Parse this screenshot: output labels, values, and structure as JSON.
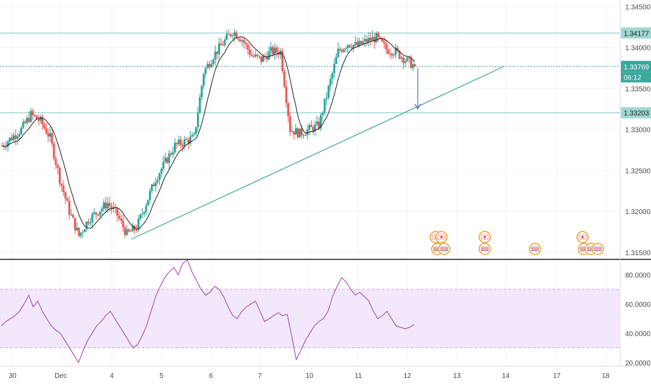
{
  "chart_data": [
    {
      "type": "candlestick",
      "title": "",
      "ylim": [
        1.3143,
        1.3458
      ],
      "price_ticks": [
        "1.34500",
        "1.34000",
        "1.33500",
        "1.33000",
        "1.32500",
        "1.32000",
        "1.31500"
      ],
      "date_labels": [
        "30",
        "Dec",
        "4",
        "5",
        "6",
        "7",
        "10",
        "11",
        "12",
        "13",
        "14",
        "17",
        "18"
      ],
      "levels": [
        {
          "label": "1.34177",
          "value": 1.34177,
          "kind": "horizontal"
        },
        {
          "label": "1.33769",
          "value": 1.33769,
          "kind": "last-price"
        },
        {
          "label": "1.33203",
          "value": 1.33203,
          "kind": "horizontal"
        }
      ],
      "countdown": "06:12",
      "trendline": {
        "start": {
          "date": "4",
          "price": 1.3166
        },
        "end": {
          "date": "14",
          "price": 1.3377
        }
      },
      "arrow": {
        "from": 1.3375,
        "to": 1.3325,
        "direction": "down"
      },
      "ohlc_path": [
        [
          1.328,
          1.3275,
          1.3295
        ],
        [
          1.329,
          1.3285,
          1.3305
        ],
        [
          1.33,
          1.3298,
          1.3318
        ],
        [
          1.3318,
          1.3315,
          1.333
        ],
        [
          1.331,
          1.33,
          1.332
        ],
        [
          1.329,
          1.3278,
          1.33
        ],
        [
          1.324,
          1.3235,
          1.326
        ],
        [
          1.32,
          1.3182,
          1.3205
        ],
        [
          1.317,
          1.316,
          1.3185
        ],
        [
          1.319,
          1.318,
          1.321
        ],
        [
          1.32,
          1.319,
          1.3222
        ],
        [
          1.321,
          1.3195,
          1.322
        ],
        [
          1.3195,
          1.3185,
          1.3205
        ],
        [
          1.3172,
          1.3164,
          1.3185
        ],
        [
          1.318,
          1.317,
          1.3195
        ],
        [
          1.321,
          1.32,
          1.3225
        ],
        [
          1.324,
          1.323,
          1.3255
        ],
        [
          1.326,
          1.3255,
          1.328
        ],
        [
          1.328,
          1.327,
          1.3292
        ],
        [
          1.3285,
          1.3275,
          1.3295
        ],
        [
          1.329,
          1.3275,
          1.3298
        ],
        [
          1.337,
          1.328,
          1.3385
        ],
        [
          1.339,
          1.337,
          1.3405
        ],
        [
          1.3405,
          1.3395,
          1.342
        ],
        [
          1.342,
          1.341,
          1.344
        ],
        [
          1.341,
          1.3395,
          1.3425
        ],
        [
          1.339,
          1.338,
          1.3405
        ],
        [
          1.3385,
          1.338,
          1.3402
        ],
        [
          1.3395,
          1.3388,
          1.3405
        ],
        [
          1.3395,
          1.339,
          1.3402
        ],
        [
          1.33,
          1.326,
          1.3395
        ],
        [
          1.3295,
          1.3278,
          1.331
        ],
        [
          1.33,
          1.3292,
          1.332
        ],
        [
          1.3305,
          1.3298,
          1.3312
        ],
        [
          1.335,
          1.3305,
          1.3368
        ],
        [
          1.3395,
          1.338,
          1.3405
        ],
        [
          1.3405,
          1.3395,
          1.3418
        ],
        [
          1.3402,
          1.3395,
          1.3412
        ],
        [
          1.3408,
          1.34,
          1.3418
        ],
        [
          1.3412,
          1.3402,
          1.342
        ],
        [
          1.3398,
          1.3385,
          1.341
        ],
        [
          1.3395,
          1.3385,
          1.341
        ],
        [
          1.3385,
          1.338,
          1.3395
        ],
        [
          1.3377,
          1.3374,
          1.3385
        ]
      ]
    },
    {
      "type": "line",
      "name": "RSI",
      "ylim": [
        17.5,
        90
      ],
      "ticks": [
        "80.0000",
        "60.0000",
        "40.0000",
        "20.0000"
      ],
      "band": [
        30,
        70
      ],
      "values": [
        45,
        48,
        50,
        52,
        55,
        60,
        66,
        58,
        62,
        55,
        50,
        45,
        42,
        40,
        35,
        30,
        25,
        20,
        28,
        35,
        40,
        45,
        48,
        52,
        55,
        50,
        45,
        40,
        35,
        30,
        32,
        38,
        45,
        55,
        65,
        72,
        78,
        82,
        85,
        80,
        88,
        90,
        82,
        76,
        70,
        66,
        68,
        72,
        70,
        65,
        58,
        52,
        50,
        55,
        58,
        60,
        62,
        55,
        48,
        50,
        52,
        54,
        52,
        53,
        38,
        22,
        28,
        35,
        40,
        45,
        48,
        50,
        55,
        65,
        72,
        78,
        75,
        70,
        66,
        68,
        65,
        62,
        55,
        50,
        52,
        55,
        50,
        45,
        44,
        43,
        44,
        46
      ]
    }
  ]
}
